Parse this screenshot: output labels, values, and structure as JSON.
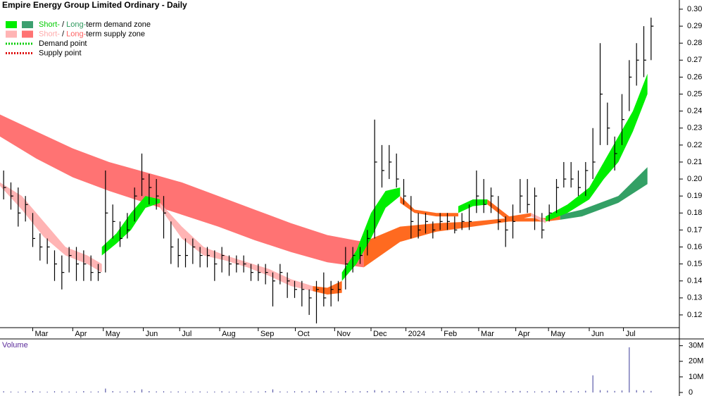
{
  "chart_data": {
    "type": "hlc",
    "title": "Empire Energy Group Limited Ordinary - Daily",
    "legend": [
      {
        "parts": [
          {
            "text": "Short-",
            "color": "#00cc00"
          },
          {
            "text": " / ",
            "color": "#000000"
          },
          {
            "text": "Long-",
            "color": "#2e9a5e"
          },
          {
            "text": "term demand zone",
            "color": "#000000"
          }
        ],
        "swatches": [
          "#00ee00",
          "#3ca070"
        ]
      },
      {
        "parts": [
          {
            "text": "Short-",
            "color": "#ffaaaa"
          },
          {
            "text": " / ",
            "color": "#000000"
          },
          {
            "text": "Long-",
            "color": "#ff6060"
          },
          {
            "text": "term supply zone",
            "color": "#000000"
          }
        ],
        "swatches": [
          "#ffb4b4",
          "#ff7373"
        ]
      },
      {
        "parts": [
          {
            "text": "Demand point",
            "color": "#000000"
          }
        ],
        "dotted": "#00cc00"
      },
      {
        "parts": [
          {
            "text": "Supply point",
            "color": "#000000"
          }
        ],
        "dotted": "#dd0000"
      }
    ],
    "xlim": [
      0,
      90
    ],
    "xticks": [
      {
        "value": 4.5,
        "label": "Mar"
      },
      {
        "value": 10,
        "label": "Apr"
      },
      {
        "value": 14.2,
        "label": "May"
      },
      {
        "value": 19.7,
        "label": "Jun"
      },
      {
        "value": 24.7,
        "label": "Jul"
      },
      {
        "value": 30.2,
        "label": "Aug"
      },
      {
        "value": 35.5,
        "label": "Sep"
      },
      {
        "value": 40.6,
        "label": "Oct"
      },
      {
        "value": 46,
        "label": "Nov"
      },
      {
        "value": 51,
        "label": "Dec"
      },
      {
        "value": 55.8,
        "label": "2024"
      },
      {
        "value": 60.7,
        "label": "Feb"
      },
      {
        "value": 65.8,
        "label": "Mar"
      },
      {
        "value": 70.9,
        "label": "Apr"
      },
      {
        "value": 75.4,
        "label": "May"
      },
      {
        "value": 81,
        "label": "Jun"
      },
      {
        "value": 85.7,
        "label": "Jul"
      }
    ],
    "ylim": [
      0.1125,
      0.3054
    ],
    "yticks": [
      0.12,
      0.13,
      0.14,
      0.15,
      0.16,
      0.17,
      0.18,
      0.19,
      0.2,
      0.21,
      0.22,
      0.23,
      0.24,
      0.25,
      0.26,
      0.27,
      0.28,
      0.29,
      0.3
    ],
    "ytick_decimals": 2,
    "bar_color": "#000000",
    "high": [
      0.205,
      0.198,
      0.195,
      0.19,
      0.18,
      0.168,
      0.165,
      0.158,
      0.155,
      0.16,
      0.16,
      0.158,
      0.155,
      0.15,
      0.205,
      0.185,
      0.175,
      0.18,
      0.195,
      0.215,
      0.203,
      0.2,
      0.19,
      0.175,
      0.165,
      0.165,
      0.165,
      0.16,
      0.16,
      0.158,
      0.16,
      0.155,
      0.155,
      0.155,
      0.15,
      0.15,
      0.15,
      0.145,
      0.15,
      0.145,
      0.14,
      0.14,
      0.135,
      0.14,
      0.145,
      0.14,
      0.14,
      0.16,
      0.16,
      0.16,
      0.17,
      0.235,
      0.22,
      0.22,
      0.215,
      0.2,
      0.19,
      0.18,
      0.18,
      0.175,
      0.18,
      0.18,
      0.178,
      0.18,
      0.185,
      0.205,
      0.2,
      0.195,
      0.19,
      0.178,
      0.185,
      0.2,
      0.2,
      0.195,
      0.18,
      0.185,
      0.2,
      0.21,
      0.21,
      0.205,
      0.21,
      0.23,
      0.28,
      0.245,
      0.225,
      0.25,
      0.27,
      0.28,
      0.29,
      0.295
    ],
    "low": [
      0.188,
      0.182,
      0.172,
      0.175,
      0.16,
      0.152,
      0.15,
      0.14,
      0.135,
      0.145,
      0.14,
      0.14,
      0.14,
      0.14,
      0.145,
      0.165,
      0.16,
      0.165,
      0.175,
      0.19,
      0.185,
      0.182,
      0.165,
      0.15,
      0.148,
      0.148,
      0.15,
      0.148,
      0.148,
      0.14,
      0.145,
      0.143,
      0.145,
      0.145,
      0.14,
      0.14,
      0.138,
      0.125,
      0.138,
      0.13,
      0.13,
      0.125,
      0.12,
      0.115,
      0.125,
      0.125,
      0.128,
      0.135,
      0.145,
      0.15,
      0.155,
      0.165,
      0.195,
      0.2,
      0.195,
      0.185,
      0.165,
      0.165,
      0.168,
      0.165,
      0.17,
      0.17,
      0.168,
      0.17,
      0.17,
      0.18,
      0.18,
      0.18,
      0.17,
      0.16,
      0.165,
      0.18,
      0.18,
      0.17,
      0.165,
      0.175,
      0.18,
      0.195,
      0.195,
      0.19,
      0.19,
      0.2,
      0.22,
      0.22,
      0.205,
      0.22,
      0.24,
      0.255,
      0.26,
      0.27
    ],
    "close": [
      0.195,
      0.19,
      0.18,
      0.185,
      0.165,
      0.16,
      0.16,
      0.15,
      0.145,
      0.155,
      0.15,
      0.15,
      0.145,
      0.145,
      0.18,
      0.175,
      0.165,
      0.17,
      0.19,
      0.2,
      0.195,
      0.19,
      0.18,
      0.16,
      0.155,
      0.155,
      0.16,
      0.155,
      0.155,
      0.15,
      0.155,
      0.15,
      0.15,
      0.15,
      0.145,
      0.145,
      0.145,
      0.14,
      0.145,
      0.14,
      0.135,
      0.135,
      0.13,
      0.135,
      0.13,
      0.135,
      0.135,
      0.15,
      0.155,
      0.155,
      0.165,
      0.21,
      0.205,
      0.21,
      0.2,
      0.19,
      0.175,
      0.17,
      0.175,
      0.17,
      0.175,
      0.175,
      0.17,
      0.175,
      0.175,
      0.19,
      0.185,
      0.19,
      0.175,
      0.17,
      0.175,
      0.19,
      0.185,
      0.19,
      0.17,
      0.18,
      0.195,
      0.2,
      0.2,
      0.195,
      0.205,
      0.21,
      0.25,
      0.23,
      0.215,
      0.235,
      0.26,
      0.27,
      0.27,
      0.29
    ],
    "zones": [
      {
        "color": "#ff7373",
        "x": [
          0,
          5,
          10,
          15,
          20,
          25,
          30,
          35,
          40,
          45,
          50
        ],
        "upper": [
          0.238,
          0.228,
          0.218,
          0.21,
          0.204,
          0.198,
          0.19,
          0.182,
          0.174,
          0.167,
          0.163
        ],
        "lower": [
          0.225,
          0.212,
          0.201,
          0.193,
          0.186,
          0.179,
          0.172,
          0.164,
          0.157,
          0.151,
          0.148
        ]
      },
      {
        "color": "#ff6a20",
        "x": [
          50,
          55,
          60,
          65,
          70,
          75,
          77
        ],
        "upper": [
          0.163,
          0.172,
          0.174,
          0.175,
          0.177,
          0.177,
          0.179
        ],
        "lower": [
          0.148,
          0.163,
          0.169,
          0.172,
          0.175,
          0.175,
          0.176
        ]
      },
      {
        "color": "#33a065",
        "x": [
          77,
          80,
          85,
          89
        ],
        "upper": [
          0.179,
          0.182,
          0.19,
          0.207
        ],
        "lower": [
          0.176,
          0.178,
          0.186,
          0.197
        ]
      },
      {
        "color": "#ffb4b4",
        "x": [
          0,
          3,
          6,
          9,
          12,
          14
        ],
        "upper": [
          0.198,
          0.19,
          0.175,
          0.16,
          0.155,
          0.15
        ],
        "lower": [
          0.196,
          0.182,
          0.166,
          0.155,
          0.15,
          0.145
        ]
      },
      {
        "color": "#00ee00",
        "x": [
          14,
          16,
          18,
          20,
          22
        ],
        "upper": [
          0.16,
          0.168,
          0.18,
          0.19,
          0.188
        ],
        "lower": [
          0.155,
          0.162,
          0.17,
          0.183,
          0.186
        ]
      },
      {
        "color": "#ffb4b4",
        "x": [
          22,
          25,
          28,
          31,
          34,
          37,
          40,
          43
        ],
        "upper": [
          0.186,
          0.172,
          0.16,
          0.155,
          0.151,
          0.147,
          0.141,
          0.137
        ],
        "lower": [
          0.183,
          0.165,
          0.155,
          0.152,
          0.148,
          0.143,
          0.137,
          0.134
        ]
      },
      {
        "color": "#ff6a20",
        "x": [
          43,
          45,
          47
        ],
        "upper": [
          0.137,
          0.136,
          0.14
        ],
        "lower": [
          0.134,
          0.132,
          0.133
        ]
      },
      {
        "color": "#00ee00",
        "x": [
          47,
          49,
          51,
          53,
          55
        ],
        "upper": [
          0.145,
          0.158,
          0.18,
          0.193,
          0.195
        ],
        "lower": [
          0.14,
          0.15,
          0.165,
          0.183,
          0.19
        ]
      },
      {
        "color": "#ff6a20",
        "x": [
          55,
          57,
          60,
          63
        ],
        "upper": [
          0.19,
          0.182,
          0.18,
          0.18
        ],
        "lower": [
          0.186,
          0.18,
          0.178,
          0.178
        ]
      },
      {
        "color": "#00ee00",
        "x": [
          63,
          65,
          67
        ],
        "upper": [
          0.184,
          0.188,
          0.188
        ],
        "lower": [
          0.18,
          0.184,
          0.185
        ]
      },
      {
        "color": "#ff6a20",
        "x": [
          67,
          70,
          73
        ],
        "upper": [
          0.188,
          0.178,
          0.18
        ],
        "lower": [
          0.185,
          0.175,
          0.178
        ]
      },
      {
        "color": "#ffb4b4",
        "x": [
          73,
          75
        ],
        "upper": [
          0.18,
          0.176
        ],
        "lower": [
          0.178,
          0.174
        ]
      },
      {
        "color": "#00ee00",
        "x": [
          75,
          78,
          81,
          83,
          85,
          87,
          89
        ],
        "upper": [
          0.178,
          0.185,
          0.195,
          0.21,
          0.225,
          0.24,
          0.262
        ],
        "lower": [
          0.175,
          0.18,
          0.188,
          0.2,
          0.21,
          0.228,
          0.25
        ]
      }
    ],
    "volume": {
      "label": "Volume",
      "color": "#5a5aa8",
      "ylim": [
        0,
        33000000
      ],
      "yticks": [
        0,
        {
          "value": 10000000,
          "label": "10M"
        },
        {
          "value": 20000000,
          "label": "20M"
        },
        {
          "value": 30000000,
          "label": "30M"
        }
      ],
      "values": [
        800000,
        600000,
        500000,
        700000,
        900000,
        600000,
        500000,
        800000,
        700000,
        600000,
        500000,
        900000,
        600000,
        700000,
        2500000,
        900000,
        600000,
        700000,
        1000000,
        2000000,
        900000,
        700000,
        800000,
        600000,
        700000,
        500000,
        600000,
        700000,
        500000,
        600000,
        800000,
        500000,
        600000,
        500000,
        700000,
        600000,
        900000,
        2000000,
        700000,
        600000,
        800000,
        900000,
        700000,
        1200000,
        800000,
        700000,
        600000,
        900000,
        700000,
        800000,
        900000,
        1500000,
        1000000,
        800000,
        700000,
        900000,
        600000,
        700000,
        500000,
        600000,
        800000,
        700000,
        600000,
        500000,
        700000,
        1000000,
        800000,
        700000,
        600000,
        800000,
        900000,
        1000000,
        800000,
        700000,
        900000,
        800000,
        1200000,
        1000000,
        900000,
        800000,
        1100000,
        11000000,
        1500000,
        1200000,
        1000000,
        1300000,
        29000000,
        1500000,
        1200000,
        1000000
      ]
    }
  }
}
